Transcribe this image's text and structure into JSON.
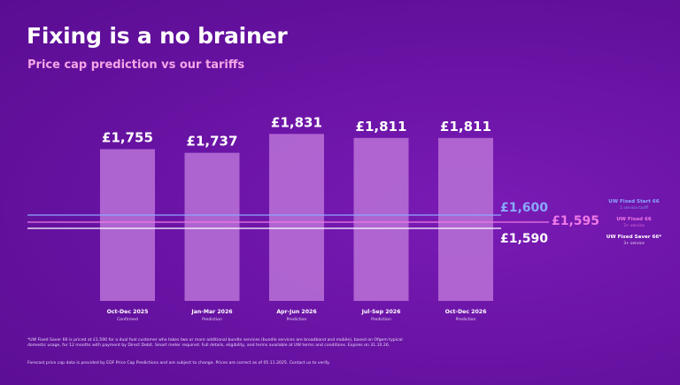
{
  "slide": {
    "title": "Fixing is a no brainer",
    "subtitle": "Price cap prediction vs our tariffs",
    "footnote_1": "*UW Fixed Saver 66 is priced at £1,590 for a dual fuel customer who takes two or more additional bundle services (bundle services are broadband and mobile), based on Ofgem typical domestic usage, for 12 months with payment by Direct Debit. Smart meter required. Full details, eligibility, and terms available at UW terms and conditions. Expires on 31.10.26.",
    "footnote_2": "Forecast price cap data is provided by EDF Price Cap Predictions and are subject to change. Prices are correct as of 05.11.2025. Contact us to verify."
  },
  "colors": {
    "background": "#6a14a4",
    "bar": "#b46bd4",
    "tariff_start": "#8aa8ff",
    "tariff_fixed": "#f079e6",
    "tariff_saver": "#ffffff",
    "subtitle": "#f6a6e6"
  },
  "chart_data": {
    "type": "bar",
    "title": "Fixing is a no brainer",
    "subtitle": "Price cap prediction vs our tariffs",
    "categories": [
      "Oct-Dec 2025",
      "Jan-Mar 2026",
      "Apr-Jun 2026",
      "Jul-Sep 2026",
      "Oct-Dec 2026"
    ],
    "category_notes": [
      "Confirmed",
      "Prediction",
      "Prediction",
      "Prediction",
      "Prediction"
    ],
    "values": [
      1755,
      1737,
      1831,
      1811,
      1811
    ],
    "value_labels": [
      "£1,755",
      "£1,737",
      "£1,831",
      "£1,811",
      "£1,811"
    ],
    "ylim": [
      1000,
      1850
    ],
    "grid": false,
    "reference_lines": [
      {
        "name": "UW Fixed Start 66",
        "note": "1 service tariff",
        "value": 1600,
        "label": "£1,600",
        "color": "#8aa8ff"
      },
      {
        "name": "UW Fixed 66",
        "note": "2+ service",
        "value": 1595,
        "label": "£1,595",
        "color": "#f079e6"
      },
      {
        "name": "UW Fixed Saver 66*",
        "note": "3+ service",
        "value": 1590,
        "label": "£1,590",
        "color": "#ffffff"
      }
    ]
  }
}
